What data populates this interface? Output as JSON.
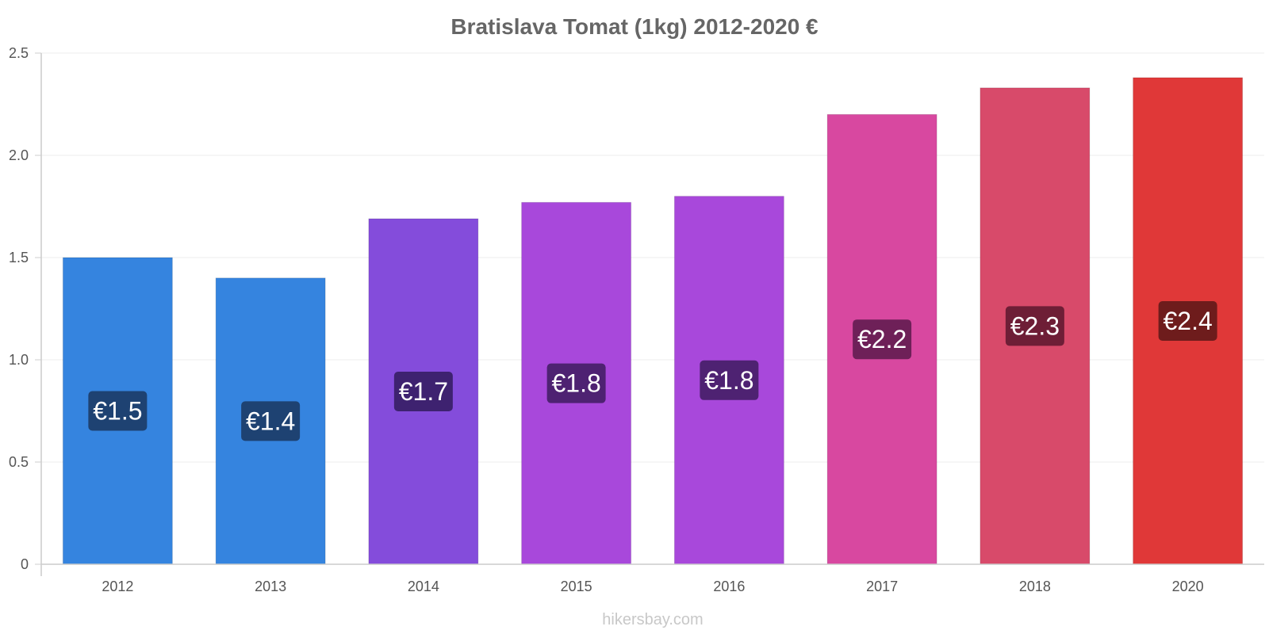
{
  "chart_data": {
    "type": "bar",
    "title": "Bratislava Tomat (1kg) 2012-2020 €",
    "categories": [
      "2012",
      "2013",
      "2014",
      "2015",
      "2016",
      "2017",
      "2018",
      "2020"
    ],
    "values": [
      1.5,
      1.4,
      1.69,
      1.77,
      1.8,
      2.2,
      2.33,
      2.38
    ],
    "labels": [
      "€1.5",
      "€1.4",
      "€1.7",
      "€1.8",
      "€1.8",
      "€2.2",
      "€2.3",
      "€2.4"
    ],
    "colors": [
      "#3584df",
      "#3584df",
      "#844cdb",
      "#a848db",
      "#a848db",
      "#d848a0",
      "#d84a6a",
      "#e03838"
    ],
    "label_bg_colors": [
      "#1e4272",
      "#1e4272",
      "#3e2270",
      "#4e2272",
      "#4e2272",
      "#6e2058",
      "#6e1e36",
      "#6e1c1c"
    ],
    "ylim": [
      0,
      2.5
    ],
    "yticks": [
      "0",
      "0.5",
      "1.0",
      "1.5",
      "2.0",
      "2.5"
    ],
    "ytick_values": [
      0,
      0.5,
      1.0,
      1.5,
      2.0,
      2.5
    ],
    "xlabel": "",
    "ylabel": "",
    "grid": true
  },
  "credit": "hikersbay.com"
}
